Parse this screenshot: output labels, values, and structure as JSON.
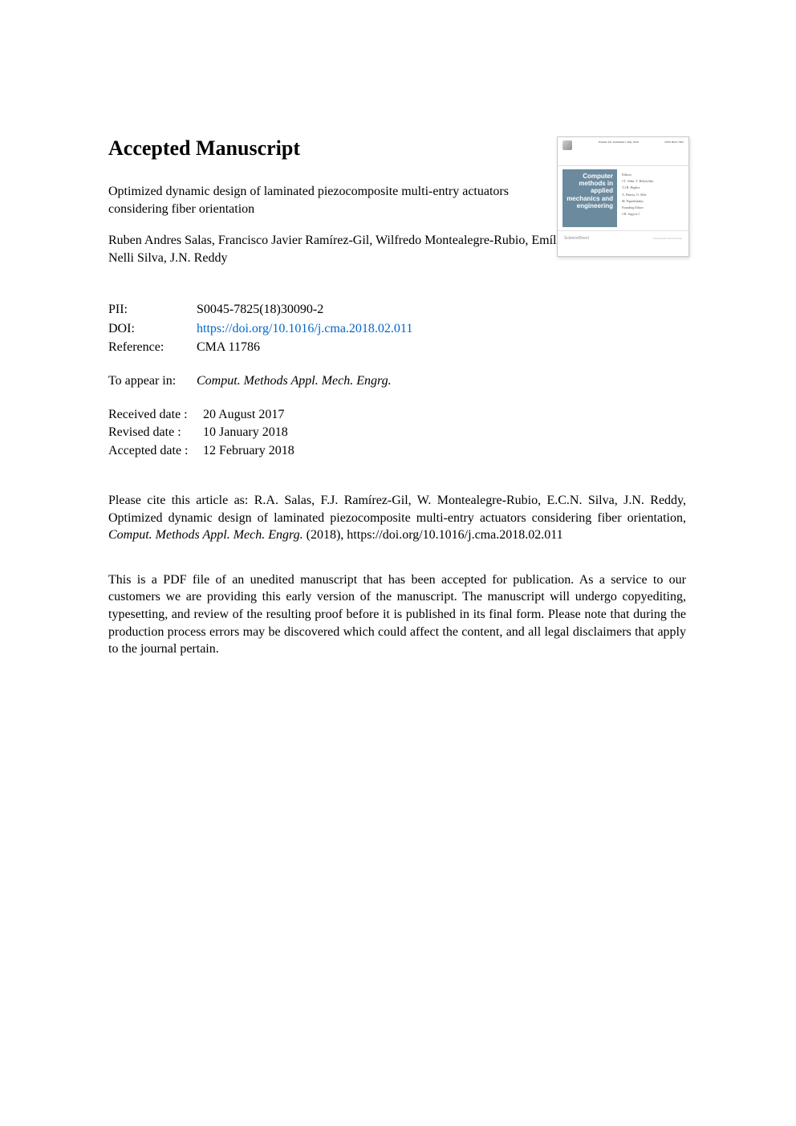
{
  "heading": "Accepted Manuscript",
  "title": "Optimized dynamic design of laminated piezocomposite multi-entry actuators considering fiber orientation",
  "authors": "Ruben Andres Salas, Francisco Javier Ramírez-Gil, Wilfredo Montealegre-Rubio, Emílio Carlos Nelli Silva, J.N. Reddy",
  "meta": {
    "pii_label": "PII:",
    "pii_value": "S0045-7825(18)30090-2",
    "doi_label": "DOI:",
    "doi_value": "https://doi.org/10.1016/j.cma.2018.02.011",
    "ref_label": "Reference:",
    "ref_value": "CMA 11786"
  },
  "appear": {
    "label": "To appear in:",
    "value": "Comput. Methods Appl. Mech. Engrg."
  },
  "dates": {
    "received_label": "Received date :",
    "received_value": "20 August 2017",
    "revised_label": "Revised date :",
    "revised_value": "10 January 2018",
    "accepted_label": "Accepted date :",
    "accepted_value": "12 February 2018"
  },
  "cite": {
    "prefix": "Please cite this article as: R.A. Salas, F.J. Ramírez-Gil, W. Montealegre-Rubio, E.C.N. Silva, J.N. Reddy, Optimized dynamic design of laminated piezocomposite multi-entry actuators considering fiber orientation, ",
    "journal": "Comput. Methods Appl. Mech. Engrg.",
    "suffix": " (2018), https://doi.org/10.1016/j.cma.2018.02.011"
  },
  "disclaimer": "This is a PDF file of an unedited manuscript that has been accepted for publication. As a service to our customers we are providing this early version of the manuscript. The manuscript will undergo copyediting, typesetting, and review of the resulting proof before it is published in its final form. Please note that during the production process errors may be discovered which could affect the content, and all legal disclaimers that apply to the journal pertain.",
  "cover": {
    "volume": "Volume 331, Published 1 May 2018",
    "issn": "ISSN 0045-7825",
    "journal_title": "Computer methods in applied mechanics and engineering",
    "ed_heading": "Editors:",
    "ed1": "J.T. Oden, T. Belytschko",
    "ed2": "T.J.R. Hughes",
    "ed3": "A. Huerta, O. Allix",
    "ed4": "M. Papadrakakis",
    "ed5": "Founding Editor:",
    "ed6": "J.H. Argyris †",
    "brand": "ScienceDirect",
    "url": "www.elsevier.com/locate/cma"
  },
  "colors": {
    "link": "#0066cc",
    "cover_bg": "#6b8a9e",
    "border": "#c8c8c8"
  }
}
